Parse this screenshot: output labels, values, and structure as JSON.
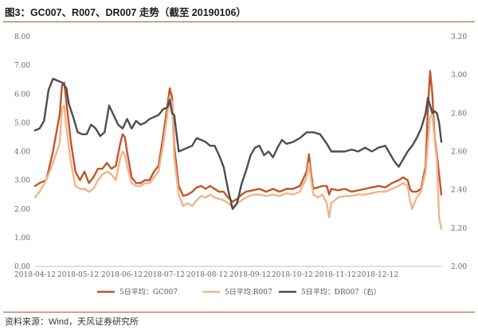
{
  "title": "图3：GC007、R007、DR007 走势（截至 20190106）",
  "source": "资料来源：Wind，天风证券研究所",
  "chart_data": {
    "type": "line",
    "x_ticks": [
      "2018-04-12",
      "2018-05-12",
      "2018-06-12",
      "2018-07-12",
      "2018-08-12",
      "2018-09-12",
      "2018-10-12",
      "2018-11-12",
      "2018-12-12"
    ],
    "y_left": {
      "ticks": [
        "0.00",
        "1.00",
        "2.00",
        "3.00",
        "4.00",
        "5.00",
        "6.00",
        "7.00",
        "8.00"
      ],
      "min": 0,
      "max": 8
    },
    "y_right": {
      "ticks": [
        "2.00",
        "2.20",
        "2.40",
        "2.60",
        "2.80",
        "3.00",
        "3.20"
      ],
      "min": 2.0,
      "max": 3.2
    },
    "series": [
      {
        "name": "5日平均：GC007",
        "axis": "left",
        "color": "#c0562a",
        "width": 2.4,
        "values": [
          [
            0,
            2.8
          ],
          [
            2,
            2.9
          ],
          [
            5,
            3.0
          ],
          [
            8,
            4.0
          ],
          [
            11,
            5.3
          ],
          [
            12,
            6.3
          ],
          [
            13,
            6.4
          ],
          [
            14,
            5.7
          ],
          [
            16,
            4.3
          ],
          [
            18,
            3.3
          ],
          [
            20,
            3.0
          ],
          [
            22,
            3.3
          ],
          [
            24,
            2.9
          ],
          [
            26,
            3.1
          ],
          [
            28,
            3.4
          ],
          [
            30,
            3.4
          ],
          [
            32,
            3.6
          ],
          [
            34,
            3.4
          ],
          [
            36,
            3.5
          ],
          [
            38,
            4.3
          ],
          [
            39,
            4.6
          ],
          [
            40,
            4.5
          ],
          [
            41,
            4.0
          ],
          [
            43,
            3.1
          ],
          [
            45,
            2.9
          ],
          [
            47,
            2.9
          ],
          [
            49,
            3.0
          ],
          [
            51,
            3.0
          ],
          [
            53,
            3.3
          ],
          [
            55,
            3.5
          ],
          [
            57,
            4.5
          ],
          [
            59,
            5.6
          ],
          [
            60,
            6.2
          ],
          [
            61,
            5.9
          ],
          [
            62,
            4.2
          ],
          [
            64,
            2.8
          ],
          [
            66,
            2.45
          ],
          [
            68,
            2.5
          ],
          [
            70,
            2.6
          ],
          [
            72,
            2.75
          ],
          [
            74,
            2.8
          ],
          [
            76,
            2.7
          ],
          [
            78,
            2.8
          ],
          [
            80,
            2.7
          ],
          [
            82,
            2.6
          ],
          [
            84,
            2.6
          ],
          [
            86,
            2.4
          ],
          [
            88,
            2.25
          ],
          [
            90,
            2.35
          ],
          [
            92,
            2.5
          ],
          [
            94,
            2.6
          ],
          [
            97,
            2.65
          ],
          [
            100,
            2.7
          ],
          [
            103,
            2.6
          ],
          [
            106,
            2.7
          ],
          [
            109,
            2.6
          ],
          [
            112,
            2.7
          ],
          [
            115,
            2.7
          ],
          [
            118,
            2.8
          ],
          [
            121,
            3.3
          ],
          [
            122,
            3.9
          ],
          [
            123,
            3.2
          ],
          [
            124,
            2.7
          ],
          [
            126,
            2.75
          ],
          [
            128,
            2.8
          ],
          [
            130,
            2.8
          ],
          [
            131,
            2.5
          ],
          [
            132,
            2.7
          ],
          [
            135,
            2.65
          ],
          [
            138,
            2.7
          ],
          [
            141,
            2.6
          ],
          [
            144,
            2.65
          ],
          [
            147,
            2.7
          ],
          [
            150,
            2.75
          ],
          [
            153,
            2.8
          ],
          [
            156,
            2.75
          ],
          [
            159,
            2.9
          ],
          [
            162,
            3.0
          ],
          [
            164,
            3.1
          ],
          [
            166,
            3.0
          ],
          [
            167,
            2.7
          ],
          [
            168,
            2.6
          ],
          [
            170,
            2.6
          ],
          [
            172,
            2.7
          ],
          [
            174,
            3.5
          ],
          [
            175,
            5.5
          ],
          [
            176,
            6.8
          ],
          [
            177,
            6.0
          ],
          [
            178,
            4.5
          ],
          [
            179,
            3.9
          ],
          [
            180,
            3.2
          ],
          [
            181,
            2.5
          ]
        ]
      },
      {
        "name": "5日平均:R007",
        "axis": "left",
        "color": "#f0b48a",
        "width": 2.4,
        "values": [
          [
            0,
            2.4
          ],
          [
            2,
            2.6
          ],
          [
            5,
            3.0
          ],
          [
            8,
            3.6
          ],
          [
            11,
            4.3
          ],
          [
            12,
            5.5
          ],
          [
            13,
            5.6
          ],
          [
            14,
            4.8
          ],
          [
            16,
            3.6
          ],
          [
            18,
            2.8
          ],
          [
            20,
            2.7
          ],
          [
            22,
            2.7
          ],
          [
            24,
            2.6
          ],
          [
            26,
            2.7
          ],
          [
            28,
            3.0
          ],
          [
            30,
            3.2
          ],
          [
            32,
            3.3
          ],
          [
            34,
            3.2
          ],
          [
            36,
            3.0
          ],
          [
            38,
            3.8
          ],
          [
            39,
            4.0
          ],
          [
            40,
            3.9
          ],
          [
            41,
            3.5
          ],
          [
            43,
            2.9
          ],
          [
            45,
            2.8
          ],
          [
            47,
            2.8
          ],
          [
            49,
            2.9
          ],
          [
            51,
            2.9
          ],
          [
            53,
            3.1
          ],
          [
            55,
            3.3
          ],
          [
            57,
            4.2
          ],
          [
            59,
            5.3
          ],
          [
            60,
            5.9
          ],
          [
            61,
            5.7
          ],
          [
            62,
            3.8
          ],
          [
            64,
            2.5
          ],
          [
            66,
            2.1
          ],
          [
            68,
            2.2
          ],
          [
            70,
            2.1
          ],
          [
            72,
            2.3
          ],
          [
            74,
            2.45
          ],
          [
            76,
            2.4
          ],
          [
            78,
            2.5
          ],
          [
            80,
            2.4
          ],
          [
            82,
            2.35
          ],
          [
            84,
            2.3
          ],
          [
            86,
            2.2
          ],
          [
            88,
            2.05
          ],
          [
            90,
            2.2
          ],
          [
            92,
            2.3
          ],
          [
            94,
            2.4
          ],
          [
            97,
            2.5
          ],
          [
            100,
            2.5
          ],
          [
            103,
            2.45
          ],
          [
            106,
            2.5
          ],
          [
            109,
            2.45
          ],
          [
            112,
            2.55
          ],
          [
            115,
            2.5
          ],
          [
            118,
            2.6
          ],
          [
            121,
            3.1
          ],
          [
            122,
            3.6
          ],
          [
            123,
            3.0
          ],
          [
            124,
            2.5
          ],
          [
            126,
            2.4
          ],
          [
            128,
            2.5
          ],
          [
            130,
            2.2
          ],
          [
            131,
            1.7
          ],
          [
            132,
            2.2
          ],
          [
            135,
            2.4
          ],
          [
            138,
            2.45
          ],
          [
            141,
            2.45
          ],
          [
            144,
            2.5
          ],
          [
            147,
            2.5
          ],
          [
            150,
            2.55
          ],
          [
            153,
            2.6
          ],
          [
            156,
            2.6
          ],
          [
            159,
            2.7
          ],
          [
            162,
            2.8
          ],
          [
            164,
            2.9
          ],
          [
            166,
            2.8
          ],
          [
            167,
            2.3
          ],
          [
            168,
            2.0
          ],
          [
            170,
            2.4
          ],
          [
            172,
            2.6
          ],
          [
            174,
            3.3
          ],
          [
            175,
            4.3
          ],
          [
            176,
            5.2
          ],
          [
            177,
            5.3
          ],
          [
            178,
            4.4
          ],
          [
            179,
            3.7
          ],
          [
            180,
            1.7
          ],
          [
            181,
            1.3
          ]
        ]
      },
      {
        "name": "5日平均：DR007（右）",
        "axis": "right",
        "color": "#4d4d4d",
        "width": 2.4,
        "values": [
          [
            0,
            2.71
          ],
          [
            2,
            2.72
          ],
          [
            4,
            2.76
          ],
          [
            6,
            2.92
          ],
          [
            8,
            2.98
          ],
          [
            10,
            2.97
          ],
          [
            12,
            2.96
          ],
          [
            14,
            2.93
          ],
          [
            15,
            2.85
          ],
          [
            17,
            2.78
          ],
          [
            19,
            2.7
          ],
          [
            21,
            2.69
          ],
          [
            23,
            2.69
          ],
          [
            25,
            2.74
          ],
          [
            27,
            2.72
          ],
          [
            29,
            2.68
          ],
          [
            31,
            2.7
          ],
          [
            33,
            2.84
          ],
          [
            35,
            2.79
          ],
          [
            37,
            2.74
          ],
          [
            39,
            2.72
          ],
          [
            41,
            2.77
          ],
          [
            43,
            2.72
          ],
          [
            45,
            2.76
          ],
          [
            47,
            2.74
          ],
          [
            49,
            2.75
          ],
          [
            51,
            2.77
          ],
          [
            53,
            2.78
          ],
          [
            55,
            2.79
          ],
          [
            57,
            2.82
          ],
          [
            59,
            2.83
          ],
          [
            60,
            2.87
          ],
          [
            61,
            2.8
          ],
          [
            62,
            2.79
          ],
          [
            64,
            2.6
          ],
          [
            66,
            2.61
          ],
          [
            68,
            2.62
          ],
          [
            70,
            2.63
          ],
          [
            72,
            2.67
          ],
          [
            74,
            2.66
          ],
          [
            76,
            2.65
          ],
          [
            78,
            2.63
          ],
          [
            80,
            2.63
          ],
          [
            82,
            2.58
          ],
          [
            84,
            2.52
          ],
          [
            86,
            2.4
          ],
          [
            88,
            2.3
          ],
          [
            90,
            2.33
          ],
          [
            92,
            2.43
          ],
          [
            94,
            2.5
          ],
          [
            96,
            2.58
          ],
          [
            98,
            2.62
          ],
          [
            100,
            2.63
          ],
          [
            102,
            2.58
          ],
          [
            104,
            2.6
          ],
          [
            106,
            2.57
          ],
          [
            108,
            2.62
          ],
          [
            110,
            2.66
          ],
          [
            112,
            2.64
          ],
          [
            115,
            2.65
          ],
          [
            118,
            2.67
          ],
          [
            121,
            2.7
          ],
          [
            124,
            2.7
          ],
          [
            127,
            2.69
          ],
          [
            130,
            2.64
          ],
          [
            132,
            2.6
          ],
          [
            135,
            2.6
          ],
          [
            138,
            2.6
          ],
          [
            141,
            2.61
          ],
          [
            144,
            2.6
          ],
          [
            147,
            2.62
          ],
          [
            150,
            2.6
          ],
          [
            153,
            2.62
          ],
          [
            156,
            2.63
          ],
          [
            158,
            2.59
          ],
          [
            160,
            2.55
          ],
          [
            162,
            2.52
          ],
          [
            164,
            2.56
          ],
          [
            166,
            2.6
          ],
          [
            168,
            2.63
          ],
          [
            170,
            2.67
          ],
          [
            172,
            2.72
          ],
          [
            174,
            2.8
          ],
          [
            175,
            2.88
          ],
          [
            176,
            2.84
          ],
          [
            177,
            2.8
          ],
          [
            178,
            2.81
          ],
          [
            179,
            2.8
          ],
          [
            180,
            2.75
          ],
          [
            181,
            2.65
          ]
        ]
      }
    ]
  }
}
